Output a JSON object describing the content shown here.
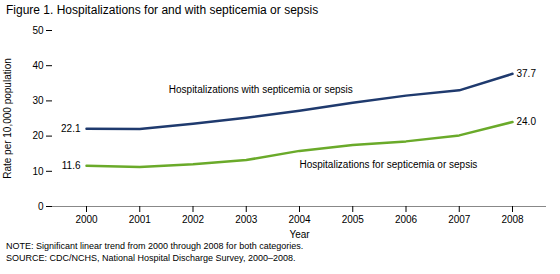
{
  "chart_data": {
    "type": "line",
    "title": "Figure 1. Hospitalizations for and with septicemia or sepsis",
    "x": [
      2000,
      2001,
      2002,
      2003,
      2004,
      2005,
      2006,
      2007,
      2008
    ],
    "series": [
      {
        "name": "Hospitalizations with septicemia or sepsis",
        "color": "#1f3a6e",
        "values": [
          22.1,
          22.0,
          23.5,
          25.2,
          27.2,
          29.5,
          31.5,
          33.0,
          37.7
        ],
        "value_labels": [
          "22.1",
          null,
          null,
          null,
          null,
          null,
          null,
          null,
          "37.7"
        ]
      },
      {
        "name": "Hospitalizations for septicemia or sepsis",
        "color": "#6aaa2a",
        "values": [
          11.6,
          11.2,
          12.0,
          13.2,
          15.8,
          17.5,
          18.5,
          20.2,
          24.0
        ],
        "value_labels": [
          "11.6",
          null,
          null,
          null,
          null,
          null,
          null,
          null,
          "24.0"
        ]
      }
    ],
    "xlabel": "Year",
    "ylabel": "Rate per 10,000 population",
    "xlim": [
      2000,
      2008
    ],
    "xticks": [
      2000,
      2001,
      2002,
      2003,
      2004,
      2005,
      2006,
      2007,
      2008
    ],
    "ylim": [
      0,
      50
    ],
    "yticks": [
      0,
      10,
      20,
      30,
      40,
      50
    ],
    "grid": false,
    "notes": [
      "NOTE: Significant linear trend from 2000 through 2008 for both categories.",
      "SOURCE: CDC/NCHS, National Hospital Discharge Survey, 2000–2008."
    ]
  }
}
